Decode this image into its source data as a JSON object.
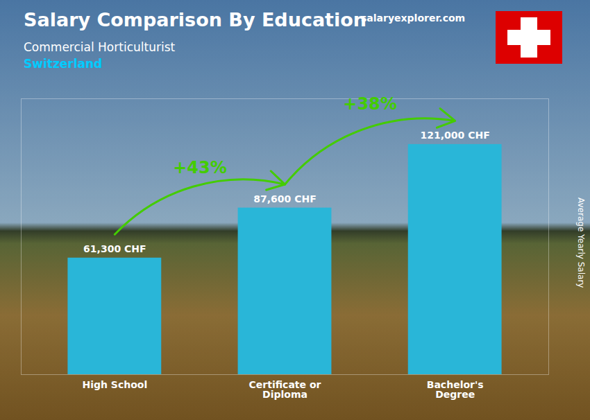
{
  "chart_data": {
    "type": "bar",
    "title": "Salary Comparison By Education",
    "subtitle": [
      "Commercial Horticulturist",
      "Switzerland"
    ],
    "ylabel": "Average Yearly Salary",
    "categories": [
      "High School",
      "Certificate or\nDiploma",
      "Bachelor's\nDegree"
    ],
    "values": [
      61300,
      87600,
      121000
    ],
    "value_labels": [
      "61,300 CHF",
      "87,600 CHF",
      "121,000 CHF"
    ],
    "data_labels": true,
    "color": "#29b6d8",
    "ylim": [
      0,
      145000
    ],
    "tick_labels": "x",
    "grid": false,
    "annotations": [
      {
        "text": "+43%",
        "from": "High School",
        "to": "Certificate or\nDiploma",
        "color": "#44cc00"
      },
      {
        "text": "+38%",
        "from": "Certificate or\nDiploma",
        "to": "Bachelor's\nDegree",
        "color": "#44cc00"
      },
      {
        "text": "salaryexplorer.com"
      }
    ]
  }
}
